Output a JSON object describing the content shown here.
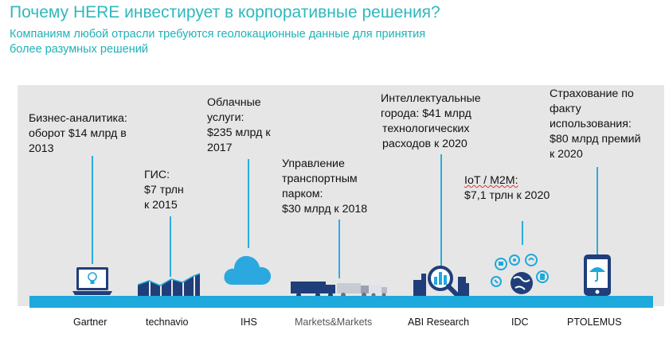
{
  "header": {
    "title": "Почему HERE инвестирует в корпоративные решения?",
    "subtitle_line1": "Компаниям любой отрасли требуются геолокационные данные для принятия",
    "subtitle_line2": "более разумных решений"
  },
  "colors": {
    "teal": "#2fb8bd",
    "band": "#1da9dc",
    "panel": "#e6e6e6",
    "icon_blue": "#1a7fc9"
  },
  "items": [
    {
      "stat": [
        "Бизнес-аналитика:",
        "оборот $14 млрд в",
        "2013"
      ],
      "source": "Gartner",
      "icon": "laptop-bulb-icon"
    },
    {
      "stat": [
        "ГИС:",
        "$7 трлн",
        "к 2015"
      ],
      "source": "technavio",
      "icon": "bar-chart-icon"
    },
    {
      "stat": [
        "Облачные",
        "услуги:",
        "$235 млрд к",
        "2017"
      ],
      "source": "IHS",
      "icon": "cloud-icon"
    },
    {
      "stat": [
        "Управление",
        "транспортным",
        "парком:",
        "$30 млрд к 2018"
      ],
      "source": "Markets&Markets",
      "icon": "trucks-icon"
    },
    {
      "stat": [
        "Интеллектуальные",
        "города: $41 млрд",
        "технологических",
        "расходов к 2020"
      ],
      "source": "ABI Research",
      "icon": "magnifier-city-icon"
    },
    {
      "stat": [
        "IoT / M2M:",
        "$7,1 трлн к 2020"
      ],
      "source": "IDC",
      "icon": "globe-devices-icon"
    },
    {
      "stat": [
        "Страхование по",
        "факту",
        "использования:",
        "$80 млрд премий",
        "к 2020"
      ],
      "source": "PTOLEMUS",
      "icon": "phone-umbrella-icon"
    }
  ]
}
